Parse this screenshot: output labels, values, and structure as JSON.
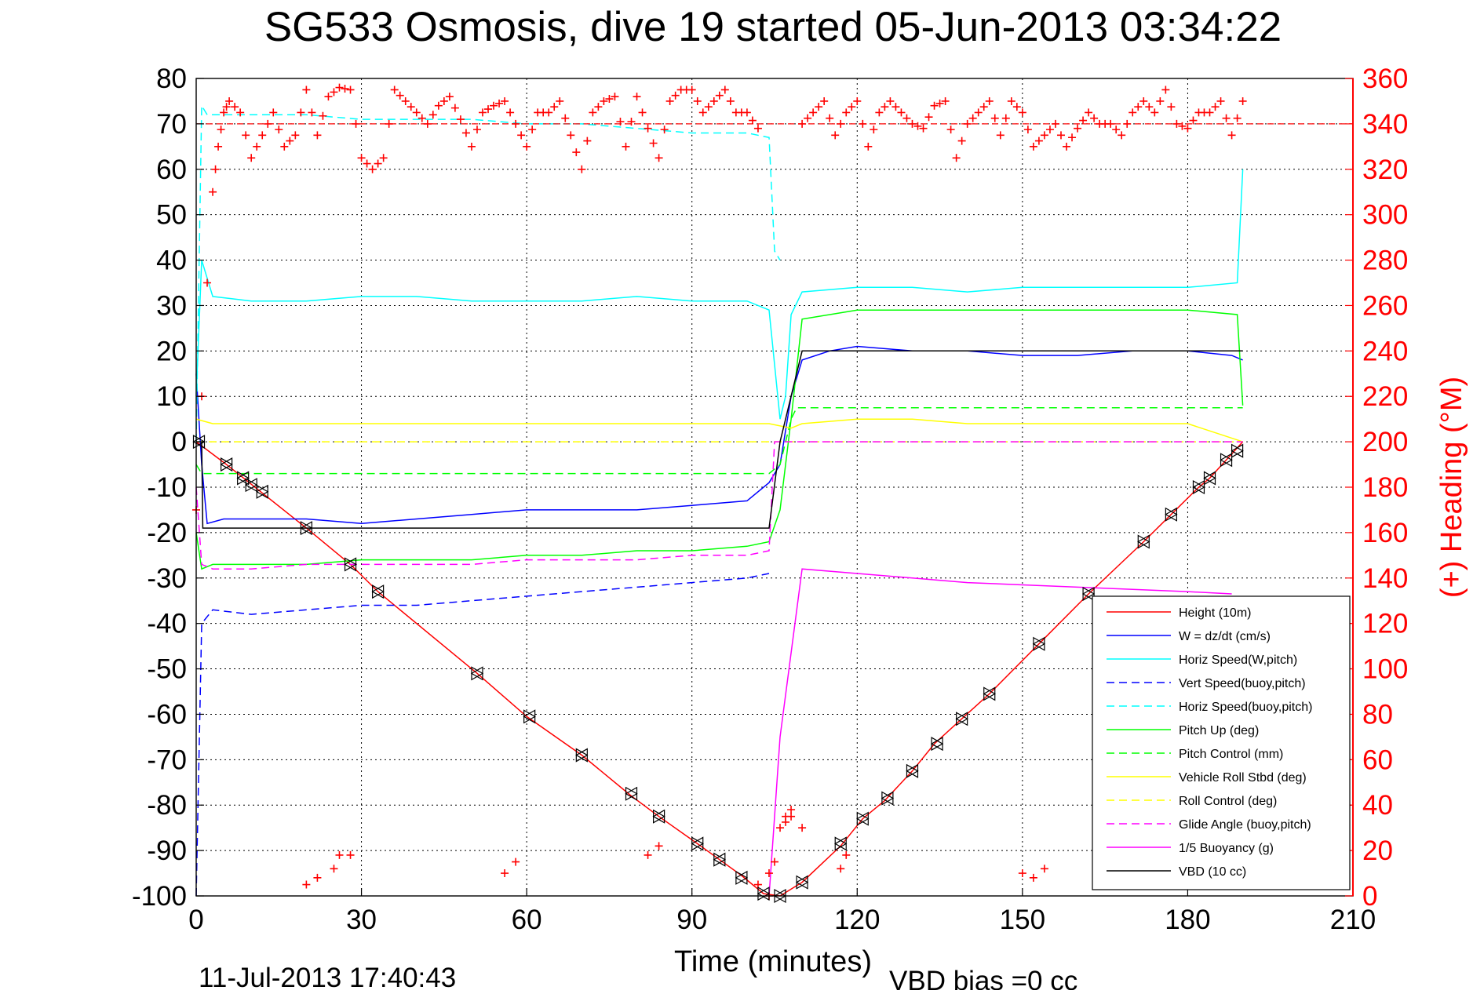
{
  "chart_data": {
    "type": "line",
    "title": "SG533 Osmosis, dive 19 started 05-Jun-2013 03:34:22",
    "xlabel": "Time (minutes)",
    "ylabel_right": "(+) Heading (°M)",
    "footer_date": "11-Jul-2013 17:40:43",
    "footer_note": "VBD bias =0 cc",
    "xlim": [
      0,
      210
    ],
    "ylim": [
      -100,
      80
    ],
    "ylim_right": [
      0,
      360
    ],
    "x_ticks": [
      0,
      30,
      60,
      90,
      120,
      150,
      180,
      210
    ],
    "y_ticks": [
      -100,
      -90,
      -80,
      -70,
      -60,
      -50,
      -40,
      -30,
      -20,
      -10,
      0,
      10,
      20,
      30,
      40,
      50,
      60,
      70,
      80
    ],
    "y_ticks_right": [
      0,
      20,
      40,
      60,
      80,
      100,
      120,
      140,
      160,
      180,
      200,
      220,
      240,
      260,
      280,
      300,
      320,
      340,
      360
    ],
    "grid": true,
    "legend_position": "bottom-right",
    "colors": {
      "red": "#ff0000",
      "blue": "#0000ff",
      "cyan": "#00ffff",
      "green": "#00ff00",
      "yellow": "#ffff00",
      "magenta": "#ff00ff",
      "black": "#000000"
    },
    "series": [
      {
        "name": "Height (10m)",
        "color": "#ff0000",
        "dash": "solid",
        "x": [
          0,
          5.5,
          20,
          28,
          33,
          51,
          60,
          70,
          79,
          84,
          91,
          95,
          99,
          103,
          106,
          110,
          117,
          121,
          125,
          130,
          134,
          139,
          144,
          153,
          162,
          172,
          177,
          182,
          184,
          187,
          190
        ],
        "y": [
          0,
          -5,
          -19,
          -27,
          -33,
          -51,
          -60.5,
          -69,
          -78,
          -82.5,
          -88.5,
          -92,
          -95.5,
          -99.5,
          -100,
          -97,
          -89,
          -83,
          -79,
          -72.5,
          -66.5,
          -61,
          -55.5,
          -44.5,
          -33.5,
          -22,
          -16,
          -10,
          -8,
          -4,
          0
        ]
      },
      {
        "name": "W = dz/dt (cm/s)",
        "color": "#0000ff",
        "dash": "solid",
        "x": [
          0,
          1,
          2,
          5,
          10,
          20,
          30,
          40,
          50,
          60,
          70,
          80,
          90,
          100,
          104,
          106,
          108,
          110,
          115,
          120,
          130,
          140,
          150,
          160,
          170,
          180,
          188,
          190
        ],
        "y": [
          15,
          -5,
          -18,
          -17,
          -17,
          -17,
          -18,
          -17,
          -16,
          -15,
          -15,
          -15,
          -14,
          -13,
          -9,
          -5,
          10,
          18,
          20,
          21,
          20,
          20,
          19,
          19,
          20,
          20,
          19,
          18
        ]
      },
      {
        "name": "Horiz Speed(W,pitch)",
        "color": "#00ffff",
        "dash": "solid",
        "x": [
          0,
          1,
          3,
          10,
          20,
          30,
          40,
          50,
          60,
          70,
          80,
          90,
          100,
          104,
          106,
          107,
          108,
          110,
          120,
          130,
          140,
          150,
          160,
          170,
          180,
          189,
          190
        ],
        "y": [
          10,
          40,
          32,
          31,
          31,
          32,
          32,
          31,
          31,
          31,
          32,
          31,
          31,
          29,
          5,
          10,
          28,
          33,
          34,
          34,
          33,
          34,
          34,
          34,
          34,
          35,
          60
        ]
      },
      {
        "name": "Vert Speed(buoy,pitch)",
        "color": "#0000ff",
        "dash": "dash",
        "x": [
          0,
          1,
          3,
          10,
          20,
          30,
          40,
          50,
          60,
          70,
          80,
          90,
          100,
          104
        ],
        "y": [
          -100,
          -40,
          -37,
          -38,
          -37,
          -36,
          -36,
          -35,
          -34,
          -33,
          -32,
          -31,
          -30,
          -29
        ]
      },
      {
        "name": "Horiz Speed(buoy,pitch)",
        "color": "#00ffff",
        "dash": "dash",
        "x": [
          0,
          1,
          2,
          10,
          20,
          30,
          40,
          50,
          60,
          70,
          80,
          90,
          100,
          104,
          105,
          106
        ],
        "y": [
          0,
          74,
          72,
          72,
          72,
          71,
          71,
          71,
          70,
          70,
          69,
          68,
          68,
          67,
          42,
          40
        ]
      },
      {
        "name": "Pitch Up (deg)",
        "color": "#00ff00",
        "dash": "solid",
        "x": [
          0,
          1,
          3,
          10,
          20,
          30,
          40,
          50,
          60,
          70,
          80,
          90,
          100,
          104,
          106,
          108,
          110,
          120,
          130,
          140,
          150,
          160,
          170,
          180,
          189,
          190
        ],
        "y": [
          -20,
          -28,
          -27,
          -27,
          -27,
          -26,
          -26,
          -26,
          -25,
          -25,
          -24,
          -24,
          -23,
          -22,
          -15,
          5,
          27,
          29,
          29,
          29,
          29,
          29,
          29,
          29,
          28,
          8
        ]
      },
      {
        "name": "Pitch Control (mm)",
        "color": "#00ff00",
        "dash": "dash",
        "x": [
          0,
          1,
          3,
          104,
          106,
          108,
          109,
          190
        ],
        "y": [
          -5,
          -7,
          -7,
          -7,
          -5,
          5,
          7.5,
          7.5
        ]
      },
      {
        "name": "Vehicle Roll Stbd (deg)",
        "color": "#ffff00",
        "dash": "solid",
        "x": [
          0,
          3,
          10,
          20,
          30,
          40,
          50,
          60,
          70,
          80,
          90,
          100,
          104,
          108,
          110,
          120,
          130,
          140,
          150,
          160,
          170,
          180,
          190
        ],
        "y": [
          5,
          4,
          4,
          4,
          4,
          4,
          4,
          4,
          4,
          4,
          4,
          4,
          4,
          3,
          4,
          5,
          5,
          4,
          4,
          4,
          4,
          4,
          0
        ]
      },
      {
        "name": "Roll Control (deg)",
        "color": "#ffff00",
        "dash": "dash",
        "x": [
          0,
          190
        ],
        "y": [
          0,
          0
        ]
      },
      {
        "name": "Glide Angle (buoy,pitch)",
        "color": "#ff00ff",
        "dash": "dash",
        "x": [
          0,
          1,
          3,
          10,
          20,
          30,
          40,
          50,
          60,
          70,
          80,
          90,
          100,
          104,
          105,
          190
        ],
        "y": [
          -10,
          -27,
          -28,
          -28,
          -27,
          -27,
          -27,
          -27,
          -26,
          -26,
          -26,
          -25,
          -25,
          -24,
          0,
          0
        ]
      },
      {
        "name": "1/5 Buoyancy (g)",
        "color": "#ff00ff",
        "dash": "solid",
        "x": [
          104,
          106,
          110,
          120,
          130,
          140,
          150,
          160,
          170,
          180,
          188
        ],
        "y": [
          -100,
          -65,
          -28,
          -29,
          -30,
          -31,
          -31.5,
          -32,
          -32.5,
          -33,
          -33.5
        ]
      },
      {
        "name": "VBD (10 cc)",
        "color": "#000000",
        "dash": "solid",
        "x": [
          0,
          1,
          1.2,
          104,
          106,
          110,
          190
        ],
        "y": [
          0,
          0,
          -19,
          -19,
          0,
          20,
          20
        ]
      }
    ],
    "heading": {
      "name": "(+) Heading",
      "marker": "+",
      "color": "#ff0000",
      "x": [
        0,
        1,
        2,
        3,
        4,
        5,
        6,
        8,
        10,
        12,
        14,
        16,
        18,
        20,
        22,
        24,
        26,
        28,
        30,
        32,
        34,
        36,
        38,
        40,
        42,
        44,
        46,
        48,
        50,
        52,
        54,
        56,
        58,
        60,
        62,
        64,
        66,
        68,
        70,
        72,
        74,
        76,
        78,
        80,
        82,
        84,
        86,
        88,
        90,
        92,
        94,
        96,
        98,
        100,
        102,
        104,
        106,
        108,
        110,
        112,
        114,
        116,
        118,
        120,
        122,
        124,
        126,
        128,
        130,
        132,
        134,
        136,
        138,
        140,
        142,
        144,
        146,
        148,
        150,
        152,
        154,
        156,
        158,
        160,
        162,
        164,
        166,
        168,
        170,
        172,
        174,
        176,
        178,
        180,
        182,
        184,
        186,
        188,
        190
      ],
      "y": [
        170,
        220,
        270,
        310,
        330,
        345,
        350,
        345,
        325,
        335,
        345,
        330,
        335,
        355,
        335,
        352,
        356,
        355,
        325,
        320,
        325,
        355,
        350,
        345,
        340,
        348,
        352,
        342,
        330,
        345,
        348,
        350,
        340,
        330,
        345,
        345,
        350,
        335,
        320,
        345,
        350,
        352,
        330,
        352,
        338,
        325,
        350,
        355,
        355,
        345,
        350,
        355,
        345,
        345,
        338,
        0,
        30,
        35,
        340,
        345,
        350,
        335,
        345,
        350,
        330,
        345,
        350,
        345,
        340,
        338,
        348,
        350,
        325,
        340,
        345,
        350,
        335,
        350,
        345,
        330,
        335,
        340,
        330,
        338,
        345,
        340,
        340,
        335,
        345,
        350,
        345,
        355,
        340,
        338,
        345,
        345,
        350,
        335,
        350
      ]
    },
    "heading_scatter": {
      "x": [
        20,
        22,
        25,
        26,
        28,
        56,
        58,
        82,
        84,
        102,
        104,
        107,
        108,
        110,
        117,
        118,
        150,
        152,
        154,
        180,
        182,
        184
      ],
      "y": [
        5,
        8,
        12,
        18,
        18,
        10,
        15,
        18,
        22,
        5,
        10,
        35,
        38,
        30,
        12,
        18,
        10,
        8,
        12,
        5,
        8,
        12
      ]
    },
    "heading_reference": 340,
    "timing_markers": {
      "x": [
        0.5,
        5.5,
        8.5,
        10,
        12,
        20,
        28,
        33,
        51,
        60.5,
        70,
        79,
        84,
        91,
        95,
        99,
        103,
        106,
        110,
        117,
        121,
        125.5,
        130,
        134.5,
        139,
        144,
        153,
        162,
        172,
        177,
        182,
        184,
        187,
        189
      ],
      "y": [
        0,
        -5,
        -8,
        -9.5,
        -11,
        -19,
        -27,
        -33,
        -51,
        -60.5,
        -69,
        -77.5,
        -82.5,
        -88.5,
        -92,
        -96,
        -99.5,
        -100,
        -97,
        -88.5,
        -83,
        -78.5,
        -72.5,
        -66.5,
        -61,
        -55.5,
        -44.5,
        -33.5,
        -22,
        -16,
        -10,
        -8,
        -4,
        -2
      ]
    }
  }
}
